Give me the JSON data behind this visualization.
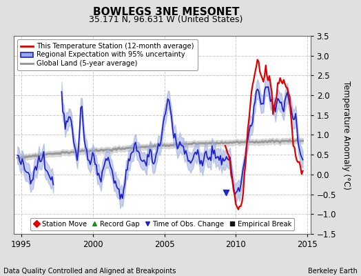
{
  "title": "BOWLEGS 3NE MESONET",
  "subtitle": "35.171 N, 96.631 W (United States)",
  "xlabel_left": "Data Quality Controlled and Aligned at Breakpoints",
  "xlabel_right": "Berkeley Earth",
  "ylabel": "Temperature Anomaly (°C)",
  "xlim": [
    1994.5,
    2015.2
  ],
  "ylim": [
    -1.5,
    3.5
  ],
  "yticks": [
    -1.5,
    -1.0,
    -0.5,
    0.0,
    0.5,
    1.0,
    1.5,
    2.0,
    2.5,
    3.0,
    3.5
  ],
  "xticks": [
    1995,
    2000,
    2005,
    2010,
    2015
  ],
  "background_color": "#e0e0e0",
  "plot_bg_color": "#ffffff",
  "grid_color": "#cccccc",
  "red_color": "#dd0000",
  "blue_color": "#2222cc",
  "blue_fill_color": "#99aadd",
  "gray_color": "#999999",
  "gray_fill_color": "#cccccc",
  "legend1_items": [
    "This Temperature Station (12-month average)",
    "Regional Expectation with 95% uncertainty",
    "Global Land (5-year average)"
  ],
  "legend2_items": [
    "Station Move",
    "Record Gap",
    "Time of Obs. Change",
    "Empirical Break"
  ],
  "blue_gap_start": 1997.25,
  "blue_gap_end": 1997.83,
  "time_obs_change_x": 2009.3,
  "time_obs_change_y": -0.45
}
